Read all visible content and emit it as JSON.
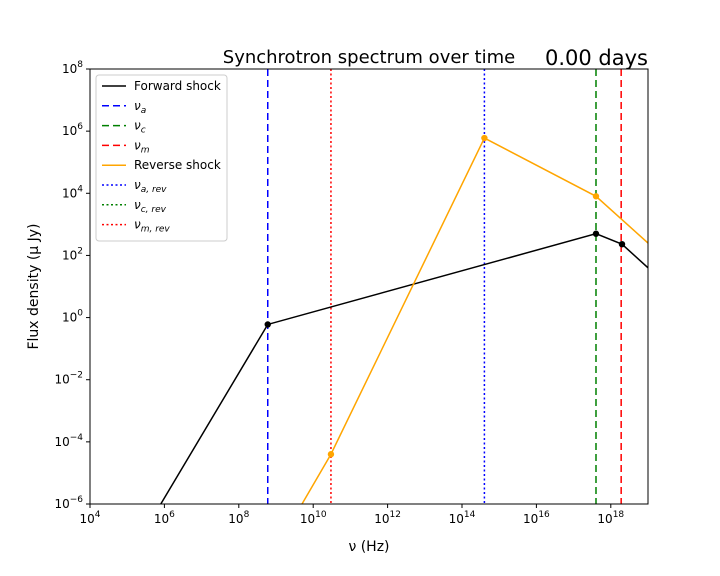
{
  "chart_data": {
    "type": "line",
    "title": "Synchrotron spectrum over time",
    "time_label": "0.00 days",
    "xlabel": "ν (Hz)",
    "ylabel": "Flux density (μ Jy)",
    "xscale": "log",
    "yscale": "log",
    "xlim": [
      10000,
      1e+19
    ],
    "ylim": [
      1e-06,
      100000000.0
    ],
    "xticks": [
      {
        "base": "10",
        "exp": "4"
      },
      {
        "base": "10",
        "exp": "6"
      },
      {
        "base": "10",
        "exp": "8"
      },
      {
        "base": "10",
        "exp": "10"
      },
      {
        "base": "10",
        "exp": "12"
      },
      {
        "base": "10",
        "exp": "14"
      },
      {
        "base": "10",
        "exp": "16"
      },
      {
        "base": "10",
        "exp": "18"
      }
    ],
    "yticks": [
      {
        "base": "10",
        "exp": "−6"
      },
      {
        "base": "10",
        "exp": "−4"
      },
      {
        "base": "10",
        "exp": "−2"
      },
      {
        "base": "10",
        "exp": "0"
      },
      {
        "base": "10",
        "exp": "2"
      },
      {
        "base": "10",
        "exp": "4"
      },
      {
        "base": "10",
        "exp": "6"
      },
      {
        "base": "10",
        "exp": "8"
      }
    ],
    "grid": false,
    "legend_position": "upper-left",
    "legend": [
      {
        "label": "Forward shock",
        "sub": "",
        "color": "#000000",
        "style": "solid"
      },
      {
        "label": "ν",
        "sub": "a",
        "color": "#0000ff",
        "style": "dashed"
      },
      {
        "label": "ν",
        "sub": "c",
        "color": "#008000",
        "style": "dashed"
      },
      {
        "label": "ν",
        "sub": "m",
        "color": "#ff0000",
        "style": "dashed"
      },
      {
        "label": "Reverse shock",
        "sub": "",
        "color": "#ffa500",
        "style": "solid"
      },
      {
        "label": "ν",
        "sub": "a, rev",
        "color": "#0000ff",
        "style": "dotted"
      },
      {
        "label": "ν",
        "sub": "c, rev",
        "color": "#008000",
        "style": "dotted"
      },
      {
        "label": "ν",
        "sub": "m, rev",
        "color": "#ff0000",
        "style": "dotted"
      }
    ],
    "series": [
      {
        "name": "Forward shock",
        "color": "#000000",
        "x": [
          800000,
          600000000.0,
          4e+17,
          2e+18,
          1e+19
        ],
        "y": [
          1e-06,
          0.6,
          500,
          230,
          40
        ]
      },
      {
        "name": "Reverse shock",
        "color": "#ffa500",
        "x": [
          5000000000.0,
          30000000000.0,
          400000000000000.0,
          4e+17,
          1e+19
        ],
        "y": [
          1e-06,
          4e-05,
          600000,
          8000,
          250
        ]
      }
    ],
    "markers": [
      {
        "series": "Forward shock",
        "color": "#000000",
        "x": 600000000.0,
        "y": 0.6
      },
      {
        "series": "Forward shock",
        "color": "#000000",
        "x": 4e+17,
        "y": 500
      },
      {
        "series": "Forward shock",
        "color": "#000000",
        "x": 2e+18,
        "y": 230
      },
      {
        "series": "Reverse shock",
        "color": "#ffa500",
        "x": 30000000000.0,
        "y": 4e-05
      },
      {
        "series": "Reverse shock",
        "color": "#ffa500",
        "x": 400000000000000.0,
        "y": 600000
      },
      {
        "series": "Reverse shock",
        "color": "#ffa500",
        "x": 4e+17,
        "y": 8000
      }
    ],
    "vlines": [
      {
        "name": "nu_a",
        "x": 600000000.0,
        "color": "#0000ff",
        "style": "dashed"
      },
      {
        "name": "nu_c",
        "x": 4e+17,
        "color": "#008000",
        "style": "dashed"
      },
      {
        "name": "nu_m",
        "x": 1.9e+18,
        "color": "#ff0000",
        "style": "dashed"
      },
      {
        "name": "nu_a_rev",
        "x": 400000000000000.0,
        "color": "#0000ff",
        "style": "dotted"
      },
      {
        "name": "nu_m_rev",
        "x": 30000000000.0,
        "color": "#ff0000",
        "style": "dotted"
      }
    ]
  }
}
